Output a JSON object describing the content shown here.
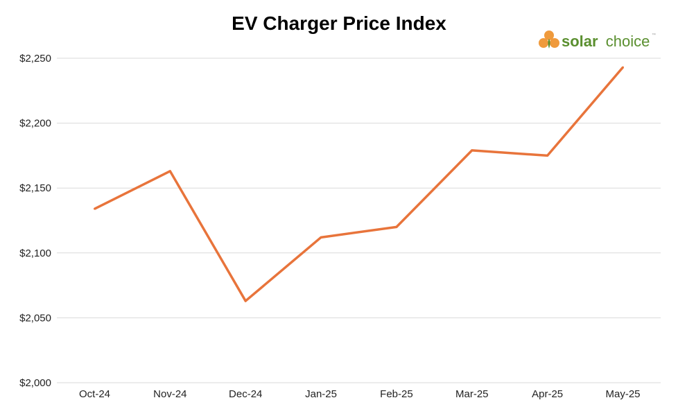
{
  "chart_data": {
    "type": "line",
    "title": "EV Charger Price Index",
    "xlabel": "",
    "ylabel": "",
    "categories": [
      "Oct-24",
      "Nov-24",
      "Dec-24",
      "Jan-25",
      "Feb-25",
      "Mar-25",
      "Apr-25",
      "May-25"
    ],
    "series": [
      {
        "values": [
          2134,
          2163,
          2063,
          2112,
          2120,
          2179,
          2175,
          2243
        ],
        "color": "#e8743b"
      }
    ],
    "ylim": [
      2000,
      2250
    ],
    "yticks": [
      2000,
      2050,
      2100,
      2150,
      2200,
      2250
    ],
    "ytick_labels": [
      "$2,000",
      "$2,050",
      "$2,100",
      "$2,150",
      "$2,200",
      "$2,250"
    ],
    "grid": true,
    "legend": "none"
  },
  "logo": {
    "text_bold": "solar",
    "text_light": "choice",
    "tm": "™",
    "brand_orange": "#ef9a3c",
    "brand_green": "#5a8f2f"
  }
}
